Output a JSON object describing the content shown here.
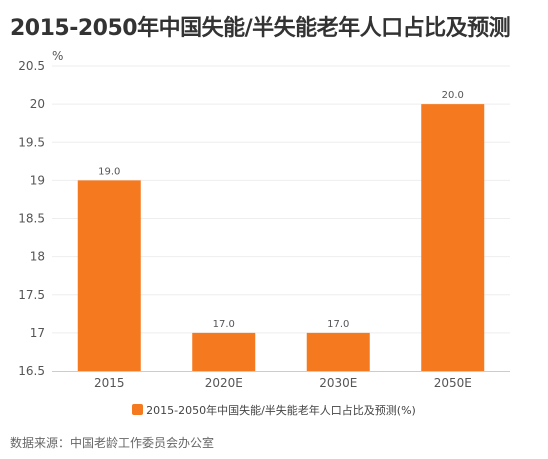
{
  "title": "2015-2050年中国失能/半失能老年人口占比及预测",
  "source": "数据来源：中国老龄工作委员会办公室",
  "chart_data": {
    "type": "bar",
    "categories": [
      "2015",
      "2020E",
      "2030E",
      "2050E"
    ],
    "series": [
      {
        "name": "2015-2050年中国失能/半失能老年人口占比及预测(%)",
        "values": [
          19.0,
          17.0,
          17.0,
          20.0
        ],
        "labels": [
          "19.0",
          "17.0",
          "17.0",
          "20.0"
        ],
        "color": "#F5791E"
      }
    ],
    "ylabel": "%",
    "ylim": [
      16.5,
      20.5
    ],
    "yticks": [
      16.5,
      17,
      17.5,
      18,
      18.5,
      19,
      19.5,
      20,
      20.5
    ],
    "ytick_labels": [
      "16.5",
      "17",
      "17.5",
      "18",
      "18.5",
      "19",
      "19.5",
      "20",
      "20.5"
    ],
    "grid": true,
    "legend_position": "bottom"
  }
}
